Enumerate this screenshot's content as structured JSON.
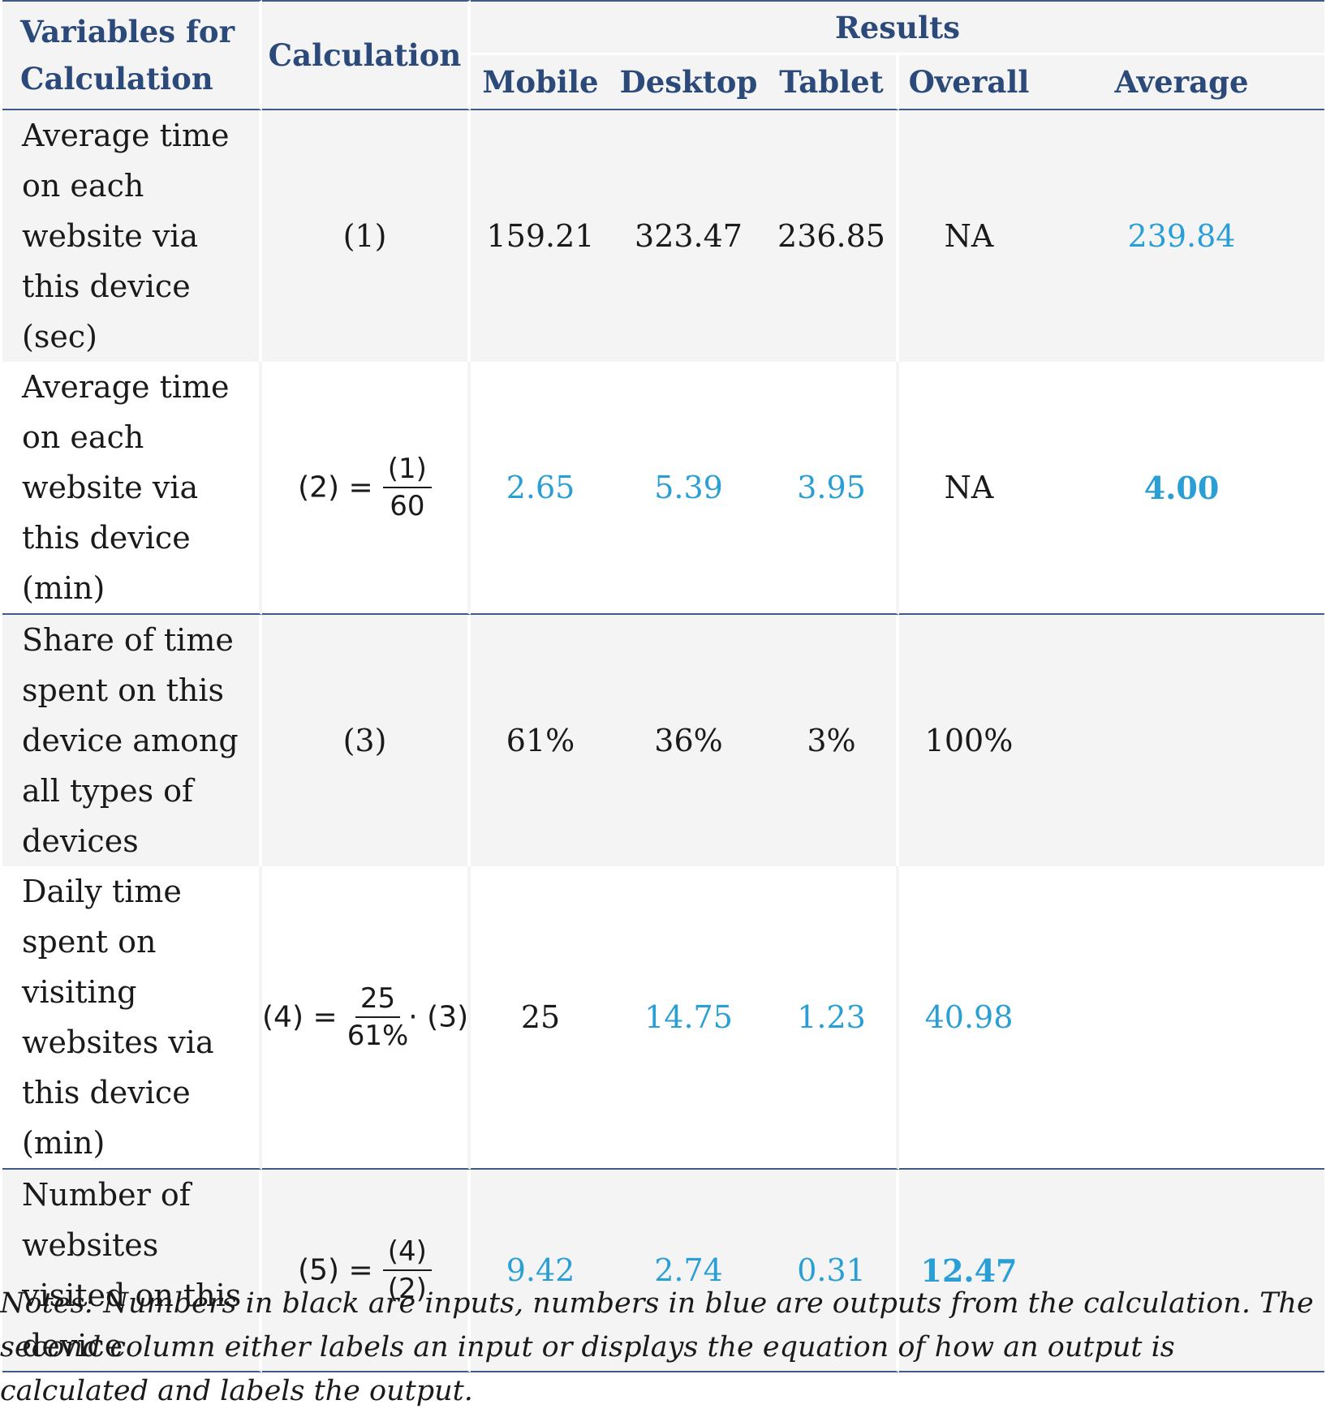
{
  "header": {
    "col_variables": "Variables for Calculation",
    "col_calculation": "Calculation",
    "col_results": "Results",
    "sub_mobile": "Mobile",
    "sub_desktop": "Desktop",
    "sub_tablet": "Tablet",
    "sub_overall": "Overall",
    "sub_average": "Average"
  },
  "rows": [
    {
      "variable": "Average time on each website via this device (sec)",
      "calc_label": "(1)",
      "mobile": "159.21",
      "desktop": "323.47",
      "tablet": "236.85",
      "overall": "NA",
      "average": "239.84"
    },
    {
      "variable": "Average time on each website via this device (min)",
      "calc_lhs": "(2) =",
      "calc_num": "(1)",
      "calc_den": "60",
      "mobile": "2.65",
      "desktop": "5.39",
      "tablet": "3.95",
      "overall": "NA",
      "average": "4.00"
    },
    {
      "variable": "Share of time spent on this device among all types of devices",
      "calc_label": "(3)",
      "mobile": "61%",
      "desktop": "36%",
      "tablet": "3%",
      "overall": "100%",
      "average": ""
    },
    {
      "variable": "Daily time spent on visiting websites via this device (min)",
      "calc_lhs": "(4) =",
      "calc_num": "25",
      "calc_den": "61%",
      "calc_rhs": "· (3)",
      "mobile": "25",
      "desktop": "14.75",
      "tablet": "1.23",
      "overall": "40.98",
      "average": ""
    },
    {
      "variable": "Number of websites visited on this device",
      "calc_lhs": "(5) =",
      "calc_num": "(4)",
      "calc_den": "(2)",
      "mobile": "9.42",
      "desktop": "2.74",
      "tablet": "0.31",
      "overall": "12.47",
      "average": ""
    }
  ],
  "colors": {
    "input": "#1a1a1a",
    "output": "#2a9fd6",
    "rule": "#3f5a85",
    "header_text": "#2b4a7a"
  },
  "notes": "Notes: Numbers in black are inputs, numbers in blue are outputs from the calculation. The second column either labels an input or displays the equation of how an output is calculated and labels the output."
}
